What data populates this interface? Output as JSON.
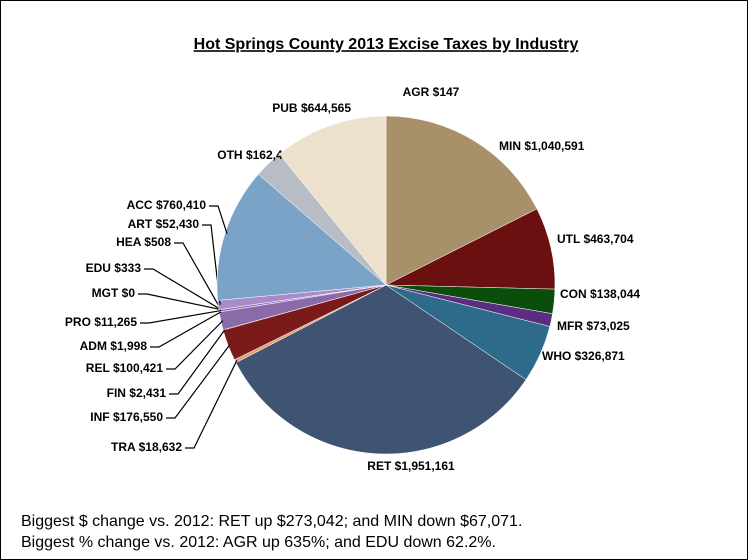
{
  "chart_data": {
    "type": "pie",
    "title": "Hot Springs County 2013 Excise Taxes by Industry",
    "categories": [
      "AGR",
      "MIN",
      "UTL",
      "CON",
      "MFR",
      "WHO",
      "RET",
      "TRA",
      "INF",
      "FIN",
      "REL",
      "ADM",
      "PRO",
      "MGT",
      "EDU",
      "HEA",
      "ART",
      "ACC",
      "OTH",
      "PUB"
    ],
    "values": [
      147,
      1040591,
      463704,
      138044,
      73025,
      326871,
      1951161,
      18632,
      176550,
      2431,
      100421,
      1998,
      11265,
      0,
      333,
      508,
      52430,
      760410,
      162403,
      644565
    ],
    "value_labels": [
      "$147",
      "$1,040,591",
      "$463,704",
      "$138,044",
      "$73,025",
      "$326,871",
      "$1,951,161",
      "$18,632",
      "$176,550",
      "$2,431",
      "$100,421",
      "$1,998",
      "$11,265",
      "$0",
      "$333",
      "$508",
      "$52,430",
      "$760,410",
      "$162,403",
      "$644,565"
    ],
    "colors": [
      "#a89068",
      "#a89068",
      "#6b1010",
      "#0b4d0b",
      "#5a2d82",
      "#2e6b8a",
      "#3f5473",
      "#e0a070",
      "#7b1a1a",
      "#c05050",
      "#8a6aa8",
      "#6a35a0",
      "#8f5fc0",
      "#7a7aa0",
      "#b090d0",
      "#9f7fbf",
      "#a88cc8",
      "#7ba3c8",
      "#b8bcc4",
      "#ede0cc"
    ]
  },
  "notes": [
    "Biggest $ change vs. 2012: RET up $273,042; and MIN down $67,071.",
    "Biggest % change vs. 2012: AGR up 635%; and EDU down 62.2%."
  ]
}
